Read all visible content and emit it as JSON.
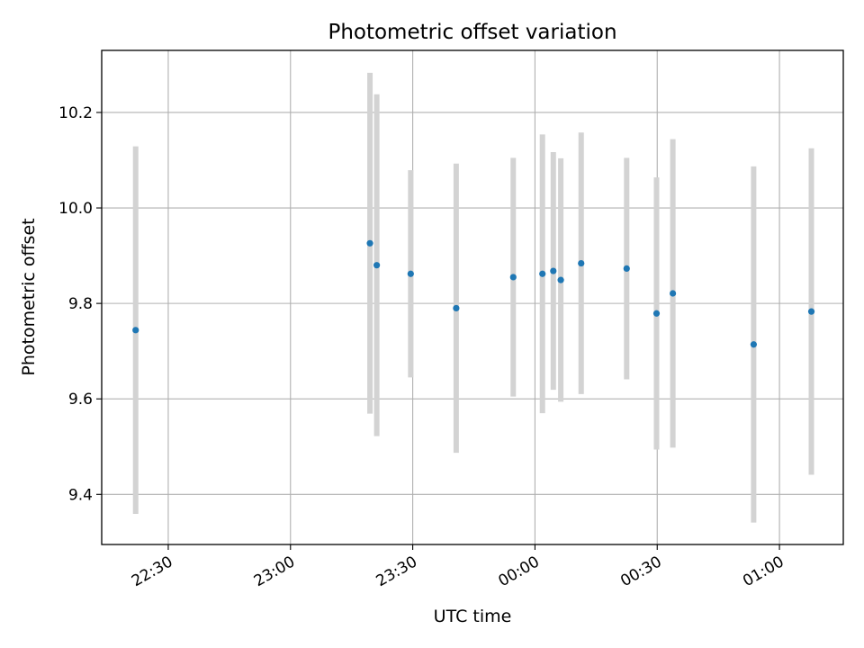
{
  "chart_data": {
    "type": "scatter",
    "title": "Photometric offset variation",
    "xlabel": "UTC time",
    "ylabel": "Photometric offset",
    "x_axis_type": "time",
    "xlim": [
      "22:13:40",
      "01:15:40"
    ],
    "ylim": [
      9.295,
      10.33
    ],
    "x_ticks": [
      "22:30",
      "23:00",
      "23:30",
      "00:00",
      "00:30",
      "01:00"
    ],
    "y_ticks": [
      9.4,
      9.6,
      9.8,
      10.0,
      10.2
    ],
    "y_tick_labels": [
      "9.4",
      "9.6",
      "9.8",
      "10.0",
      "10.2"
    ],
    "grid": true,
    "point_color": "#1f77b4",
    "errorbar_color": "#d3d3d3",
    "points": [
      {
        "x": "22:22:00",
        "y": 9.744,
        "yerr": 0.385
      },
      {
        "x": "23:19:30",
        "y": 9.926,
        "yerr": 0.357
      },
      {
        "x": "23:21:10",
        "y": 9.88,
        "yerr": 0.358
      },
      {
        "x": "23:29:30",
        "y": 9.862,
        "yerr": 0.217
      },
      {
        "x": "23:40:40",
        "y": 9.79,
        "yerr": 0.303
      },
      {
        "x": "23:54:40",
        "y": 9.855,
        "yerr": 0.25
      },
      {
        "x": "00:01:50",
        "y": 9.862,
        "yerr": 0.292
      },
      {
        "x": "00:04:30",
        "y": 9.868,
        "yerr": 0.249
      },
      {
        "x": "00:06:20",
        "y": 9.849,
        "yerr": 0.255
      },
      {
        "x": "00:11:20",
        "y": 9.884,
        "yerr": 0.274
      },
      {
        "x": "00:22:30",
        "y": 9.873,
        "yerr": 0.232
      },
      {
        "x": "00:29:50",
        "y": 9.779,
        "yerr": 0.285
      },
      {
        "x": "00:33:50",
        "y": 9.821,
        "yerr": 0.323
      },
      {
        "x": "00:53:40",
        "y": 9.714,
        "yerr": 0.373
      },
      {
        "x": "01:07:50",
        "y": 9.783,
        "yerr": 0.342
      }
    ]
  }
}
